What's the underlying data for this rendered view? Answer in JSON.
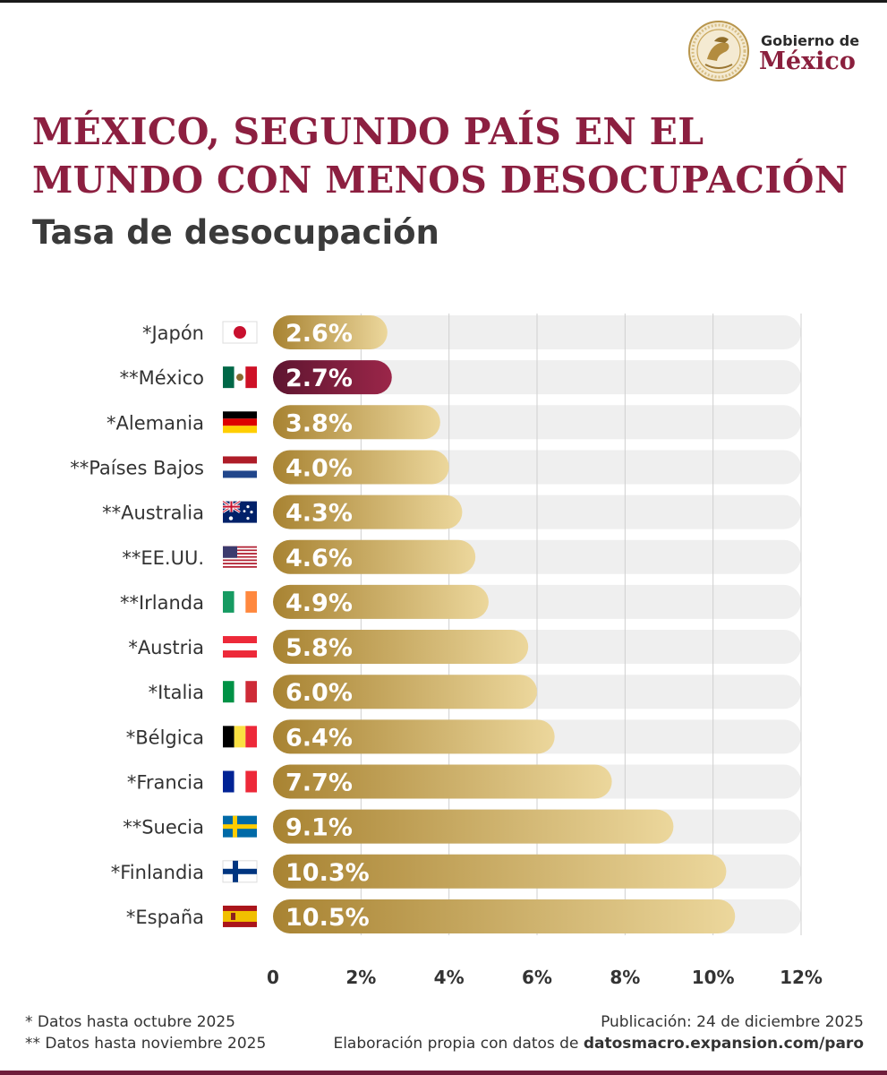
{
  "header": {
    "logo_line1": "Gobierno de",
    "logo_line2": "México",
    "seal_text": "ESTADOS UNIDOS MEXICANOS"
  },
  "title_line1": "MÉXICO, SEGUNDO PAÍS EN EL",
  "title_line2": "MUNDO CON MENOS DESOCUPACIÓN",
  "subtitle": "Tasa de desocupación",
  "colors": {
    "title": "#8c1f40",
    "gold_dark": "#a88332",
    "gold_light": "#ecd79c",
    "highlight_dark": "#5e1530",
    "highlight_light": "#9b2649",
    "track": "#efefef",
    "grid": "#cfcfcf"
  },
  "chart_data": {
    "type": "bar",
    "orientation": "horizontal",
    "title": "Tasa de desocupación",
    "xlabel": "",
    "ylabel": "",
    "xlim": [
      0,
      12
    ],
    "xticks": [
      0,
      2,
      4,
      6,
      8,
      10,
      12
    ],
    "xtick_labels": [
      "0",
      "2%",
      "4%",
      "6%",
      "8%",
      "10%",
      "12%"
    ],
    "grid": true,
    "categories": [
      "*Japón",
      "**México",
      "*Alemania",
      "**Países Bajos",
      "**Australia",
      "**EE.UU.",
      "**Irlanda",
      "*Austria",
      "*Italia",
      "*Bélgica",
      "*Francia",
      "**Suecia",
      "*Finlandia",
      "*España"
    ],
    "flags": [
      "japan-flag",
      "mexico-flag",
      "germany-flag",
      "netherlands-flag",
      "australia-flag",
      "usa-flag",
      "ireland-flag",
      "austria-flag",
      "italy-flag",
      "belgium-flag",
      "france-flag",
      "sweden-flag",
      "finland-flag",
      "spain-flag"
    ],
    "values": [
      2.6,
      2.7,
      3.8,
      4.0,
      4.3,
      4.6,
      4.9,
      5.8,
      6.0,
      6.4,
      7.7,
      9.1,
      10.3,
      10.5
    ],
    "value_labels": [
      "2.6%",
      "2.7%",
      "3.8%",
      "4.0%",
      "4.3%",
      "4.6%",
      "4.9%",
      "5.8%",
      "6.0%",
      "6.4%",
      "7.7%",
      "9.1%",
      "10.3%",
      "10.5%"
    ],
    "highlight_index": 1
  },
  "footer": {
    "note1": "* Datos hasta octubre 2025",
    "note2": "** Datos hasta noviembre 2025",
    "publication": "Publicación: 24 de diciembre 2025",
    "source_prefix": "Elaboración propia con datos de ",
    "source_link": "datosmacro.expansion.com/paro"
  }
}
